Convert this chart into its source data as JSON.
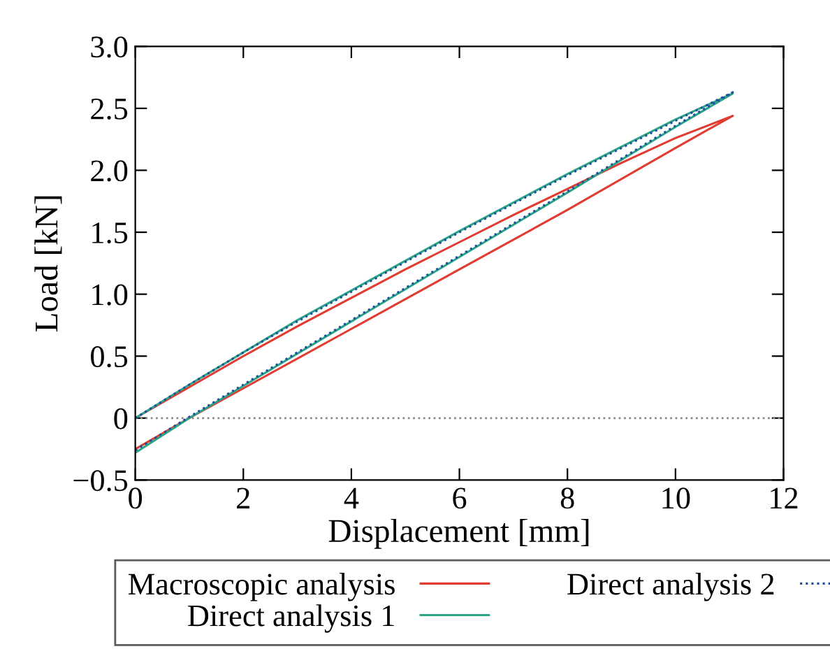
{
  "chart_data": {
    "type": "line",
    "xlabel": "Displacement [mm]",
    "ylabel": "Load [kN]",
    "xlim": [
      0,
      12
    ],
    "xticks": [
      0,
      2,
      4,
      6,
      8,
      10,
      12
    ],
    "ylim": [
      -0.5,
      3
    ],
    "yticks": [
      {
        "value": -0.5,
        "label": "−0.5"
      },
      0,
      {
        "value": 0.5,
        "label": "0.5"
      },
      {
        "value": 1,
        "label": "1.0"
      },
      {
        "value": 1.5,
        "label": "1.5"
      },
      {
        "value": 2,
        "label": "2.0"
      },
      {
        "value": 2.5,
        "label": "2.5"
      },
      {
        "value": 3,
        "label": "3.0"
      }
    ],
    "grid": false,
    "legend": "bottom",
    "marker": "none",
    "ref_lines": [
      {
        "axis": "y",
        "value": 0,
        "color": "#888888",
        "line_style": "dotted"
      }
    ],
    "series": [
      {
        "name": "Macroscopic analysis",
        "color": "#e03c31",
        "line_style": "solid",
        "x": [
          0,
          1,
          2,
          3,
          4,
          5,
          6,
          7,
          8,
          9,
          10,
          11.06,
          10,
          8,
          6,
          4,
          2,
          1,
          0
        ],
        "values": [
          0,
          0.25,
          0.5,
          0.74,
          0.97,
          1.2,
          1.42,
          1.64,
          1.85,
          2.06,
          2.26,
          2.44,
          2.18,
          1.68,
          1.2,
          0.72,
          0.24,
          0,
          -0.25
        ]
      },
      {
        "name": "Direct analysis 1",
        "color": "#2aa587",
        "line_style": "solid",
        "x": [
          0,
          1,
          2,
          3,
          4,
          5,
          6,
          7,
          8,
          9,
          10,
          11.06,
          10,
          8,
          6,
          4,
          2,
          1,
          0
        ],
        "values": [
          0,
          0.27,
          0.53,
          0.79,
          1.03,
          1.27,
          1.51,
          1.74,
          1.97,
          2.19,
          2.41,
          2.62,
          2.35,
          1.82,
          1.3,
          0.78,
          0.26,
          0,
          -0.28
        ]
      },
      {
        "name": "Direct analysis 2",
        "color": "#1f4e9c",
        "line_style": "dotted",
        "x": [
          0,
          1,
          2,
          3,
          4,
          5,
          6,
          7,
          8,
          9,
          10,
          11.06,
          10,
          8,
          6,
          4,
          2,
          1,
          0
        ],
        "values": [
          0,
          0.27,
          0.53,
          0.78,
          1.02,
          1.26,
          1.5,
          1.73,
          1.96,
          2.18,
          2.4,
          2.63,
          2.36,
          1.83,
          1.31,
          0.79,
          0.27,
          0.01,
          -0.26
        ]
      }
    ]
  }
}
